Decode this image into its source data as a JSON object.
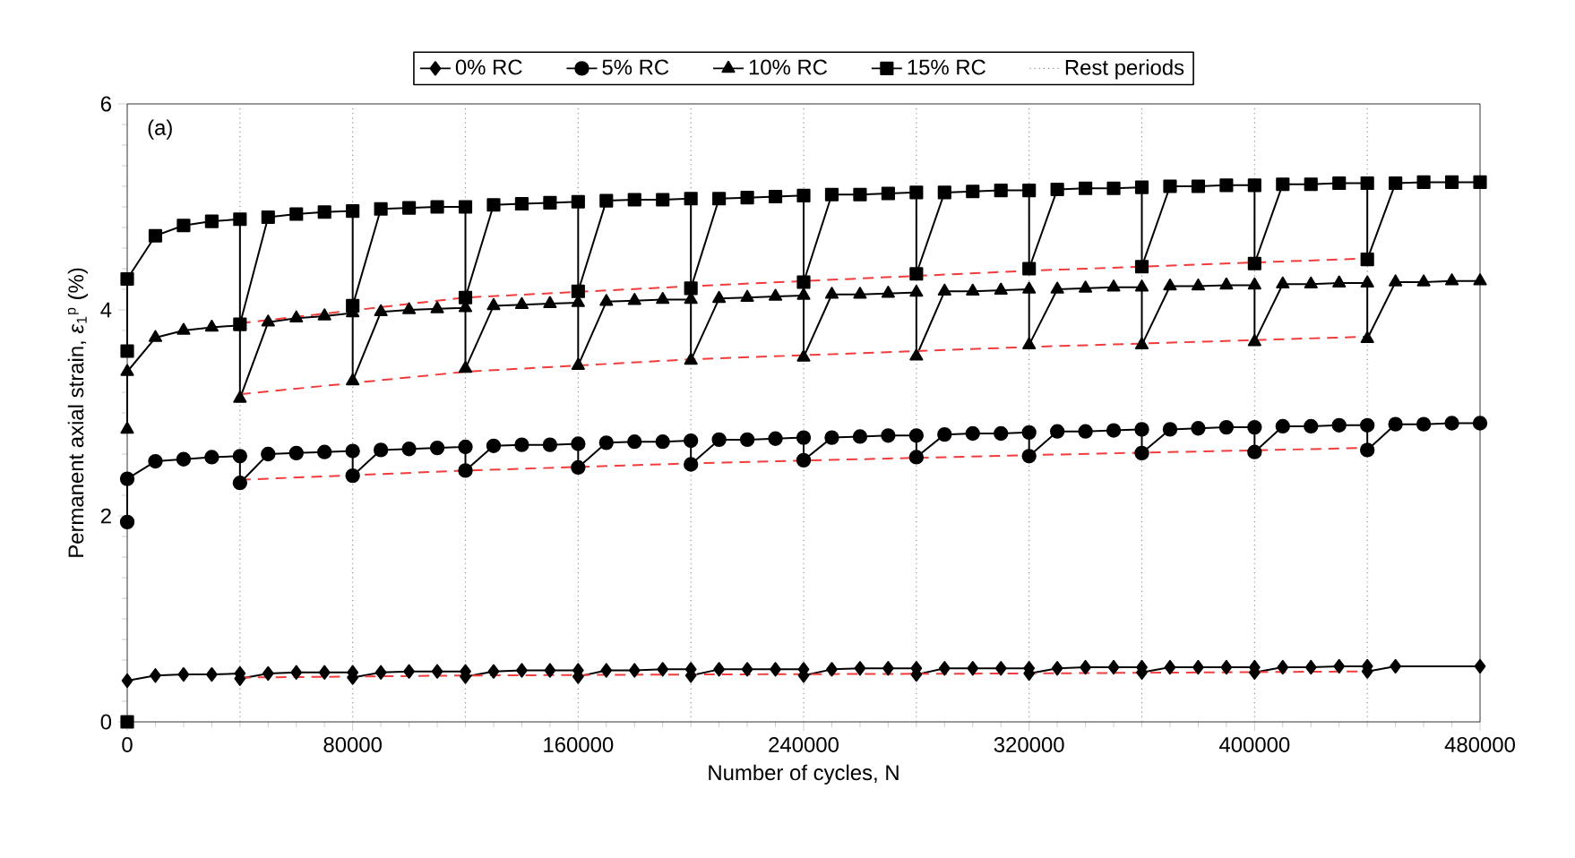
{
  "chart_data": {
    "type": "line",
    "xlabel": "Number of cycles, N",
    "ylabel": "Permanent axial strain, *ε*$_{1}$$^{p}$ (%)",
    "annotations": [
      "(a)"
    ],
    "xlim": [
      0,
      480000
    ],
    "xticks": [
      0,
      80000,
      160000,
      240000,
      320000,
      400000,
      480000
    ],
    "ylim": [
      0,
      6
    ],
    "yticks": [
      0,
      2,
      4,
      6
    ],
    "legend": "top",
    "series": [
      {
        "name": "0% RC",
        "color": "#000000",
        "marker": "diamond",
        "x": [
          0,
          10000,
          20000,
          30000,
          40000,
          40000,
          50000,
          60000,
          70000,
          80000,
          80000,
          90000,
          100000,
          110000,
          120000,
          120000,
          130000,
          140000,
          150000,
          160000,
          160000,
          170000,
          180000,
          190000,
          200000,
          200000,
          210000,
          220000,
          230000,
          240000,
          240000,
          250000,
          260000,
          270000,
          280000,
          280000,
          290000,
          300000,
          310000,
          320000,
          320000,
          330000,
          340000,
          350000,
          360000,
          360000,
          370000,
          380000,
          390000,
          400000,
          400000,
          410000,
          420000,
          430000,
          440000,
          440000,
          450000,
          480000
        ],
        "values": [
          0.4,
          0.45,
          0.46,
          0.46,
          0.47,
          0.42,
          0.47,
          0.48,
          0.48,
          0.48,
          0.43,
          0.48,
          0.49,
          0.49,
          0.49,
          0.44,
          0.49,
          0.5,
          0.5,
          0.5,
          0.44,
          0.5,
          0.5,
          0.51,
          0.51,
          0.45,
          0.51,
          0.51,
          0.51,
          0.51,
          0.45,
          0.51,
          0.52,
          0.52,
          0.52,
          0.46,
          0.52,
          0.52,
          0.52,
          0.52,
          0.47,
          0.52,
          0.53,
          0.53,
          0.53,
          0.48,
          0.53,
          0.53,
          0.53,
          0.53,
          0.48,
          0.53,
          0.53,
          0.54,
          0.54,
          0.49,
          0.54,
          0.54
        ]
      },
      {
        "name": "5% RC",
        "color": "#000000",
        "marker": "circle",
        "x": [
          0,
          0,
          10000,
          20000,
          30000,
          40000,
          40000,
          50000,
          60000,
          70000,
          80000,
          80000,
          90000,
          100000,
          110000,
          120000,
          120000,
          130000,
          140000,
          150000,
          160000,
          160000,
          170000,
          180000,
          190000,
          200000,
          200000,
          210000,
          220000,
          230000,
          240000,
          240000,
          250000,
          260000,
          270000,
          280000,
          280000,
          290000,
          300000,
          310000,
          320000,
          320000,
          330000,
          340000,
          350000,
          360000,
          360000,
          370000,
          380000,
          390000,
          400000,
          400000,
          410000,
          420000,
          430000,
          440000,
          440000,
          450000,
          460000,
          470000,
          480000
        ],
        "values": [
          1.94,
          2.36,
          2.53,
          2.55,
          2.57,
          2.58,
          2.32,
          2.6,
          2.61,
          2.62,
          2.63,
          2.39,
          2.64,
          2.65,
          2.66,
          2.67,
          2.44,
          2.68,
          2.69,
          2.69,
          2.7,
          2.47,
          2.71,
          2.72,
          2.72,
          2.73,
          2.5,
          2.74,
          2.74,
          2.75,
          2.76,
          2.54,
          2.76,
          2.77,
          2.78,
          2.78,
          2.57,
          2.79,
          2.8,
          2.8,
          2.81,
          2.58,
          2.82,
          2.82,
          2.83,
          2.84,
          2.61,
          2.84,
          2.85,
          2.86,
          2.86,
          2.62,
          2.87,
          2.87,
          2.88,
          2.88,
          2.64,
          2.89,
          2.89,
          2.9,
          2.9
        ]
      },
      {
        "name": "10% RC",
        "color": "#000000",
        "marker": "triangle",
        "x": [
          0,
          0,
          10000,
          20000,
          30000,
          40000,
          40000,
          50000,
          60000,
          70000,
          80000,
          80000,
          90000,
          100000,
          110000,
          120000,
          120000,
          130000,
          140000,
          150000,
          160000,
          160000,
          170000,
          180000,
          190000,
          200000,
          200000,
          210000,
          220000,
          230000,
          240000,
          240000,
          250000,
          260000,
          270000,
          280000,
          280000,
          290000,
          300000,
          310000,
          320000,
          320000,
          330000,
          340000,
          350000,
          360000,
          360000,
          370000,
          380000,
          390000,
          400000,
          400000,
          410000,
          420000,
          430000,
          440000,
          440000,
          450000,
          460000,
          470000,
          480000
        ],
        "values": [
          2.84,
          3.4,
          3.73,
          3.8,
          3.83,
          3.85,
          3.14,
          3.88,
          3.92,
          3.94,
          3.97,
          3.31,
          3.98,
          4.0,
          4.01,
          4.02,
          3.43,
          4.04,
          4.05,
          4.06,
          4.07,
          3.46,
          4.08,
          4.09,
          4.1,
          4.1,
          3.51,
          4.11,
          4.12,
          4.13,
          4.14,
          3.54,
          4.15,
          4.15,
          4.16,
          4.17,
          3.55,
          4.18,
          4.18,
          4.19,
          4.2,
          3.66,
          4.2,
          4.21,
          4.22,
          4.22,
          3.66,
          4.23,
          4.23,
          4.24,
          4.24,
          3.69,
          4.25,
          4.25,
          4.26,
          4.26,
          3.72,
          4.27,
          4.27,
          4.28,
          4.28
        ]
      },
      {
        "name": "15% RC",
        "color": "#000000",
        "marker": "square",
        "x": [
          0,
          0,
          10000,
          20000,
          30000,
          40000,
          40000,
          50000,
          60000,
          70000,
          80000,
          80000,
          90000,
          100000,
          110000,
          120000,
          120000,
          130000,
          140000,
          150000,
          160000,
          160000,
          170000,
          180000,
          190000,
          200000,
          200000,
          210000,
          220000,
          230000,
          240000,
          240000,
          250000,
          260000,
          270000,
          280000,
          280000,
          290000,
          300000,
          310000,
          320000,
          320000,
          330000,
          340000,
          350000,
          360000,
          360000,
          370000,
          380000,
          390000,
          400000,
          400000,
          410000,
          420000,
          430000,
          440000,
          440000,
          450000,
          460000,
          470000,
          480000
        ],
        "values": [
          3.6,
          4.3,
          4.72,
          4.82,
          4.86,
          4.88,
          3.86,
          4.9,
          4.93,
          4.95,
          4.96,
          4.04,
          4.98,
          4.99,
          5.0,
          5.0,
          4.12,
          5.02,
          5.03,
          5.04,
          5.05,
          4.18,
          5.06,
          5.07,
          5.07,
          5.08,
          4.21,
          5.08,
          5.09,
          5.1,
          5.11,
          4.27,
          5.12,
          5.12,
          5.13,
          5.14,
          4.35,
          5.14,
          5.15,
          5.16,
          5.16,
          4.4,
          5.17,
          5.18,
          5.18,
          5.19,
          4.42,
          5.2,
          5.2,
          5.21,
          5.21,
          4.45,
          5.22,
          5.22,
          5.23,
          5.23,
          4.49,
          5.23,
          5.24,
          5.24,
          5.24
        ]
      },
      {
        "type": "scatter",
        "color": "#000000",
        "marker": "square",
        "x": [
          0
        ],
        "values": [
          0
        ]
      },
      {
        "color": "#f03c3c",
        "marker": "none",
        "line_style": "dashed",
        "x": [
          40000,
          120000,
          200000,
          320000,
          440000
        ],
        "values": [
          0.43,
          0.45,
          0.46,
          0.47,
          0.49
        ]
      },
      {
        "color": "#f03c3c",
        "marker": "none",
        "line_style": "dashed",
        "x": [
          40000,
          120000,
          200000,
          320000,
          440000
        ],
        "values": [
          2.35,
          2.44,
          2.51,
          2.59,
          2.66
        ]
      },
      {
        "color": "#f03c3c",
        "marker": "none",
        "line_style": "dashed",
        "x": [
          40000,
          120000,
          200000,
          320000,
          440000
        ],
        "values": [
          3.18,
          3.4,
          3.52,
          3.64,
          3.74
        ]
      },
      {
        "color": "#f03c3c",
        "marker": "none",
        "line_style": "dashed",
        "x": [
          40000,
          120000,
          200000,
          320000,
          440000
        ],
        "values": [
          3.87,
          4.12,
          4.23,
          4.38,
          4.5
        ]
      }
    ],
    "ref_lines": [
      {
        "axis": "x",
        "value": 40000,
        "label": "Rest periods",
        "color": "#909090",
        "line_style": "dotted"
      },
      {
        "axis": "x",
        "value": 80000,
        "color": "#909090",
        "line_style": "dotted"
      },
      {
        "axis": "x",
        "value": 120000,
        "color": "#909090",
        "line_style": "dotted"
      },
      {
        "axis": "x",
        "value": 160000,
        "color": "#909090",
        "line_style": "dotted"
      },
      {
        "axis": "x",
        "value": 200000,
        "color": "#909090",
        "line_style": "dotted"
      },
      {
        "axis": "x",
        "value": 240000,
        "color": "#909090",
        "line_style": "dotted"
      },
      {
        "axis": "x",
        "value": 280000,
        "color": "#909090",
        "line_style": "dotted"
      },
      {
        "axis": "x",
        "value": 320000,
        "color": "#909090",
        "line_style": "dotted"
      },
      {
        "axis": "x",
        "value": 360000,
        "color": "#909090",
        "line_style": "dotted"
      },
      {
        "axis": "x",
        "value": 400000,
        "color": "#909090",
        "line_style": "dotted"
      },
      {
        "axis": "x",
        "value": 440000,
        "color": "#909090",
        "line_style": "dotted"
      }
    ]
  }
}
